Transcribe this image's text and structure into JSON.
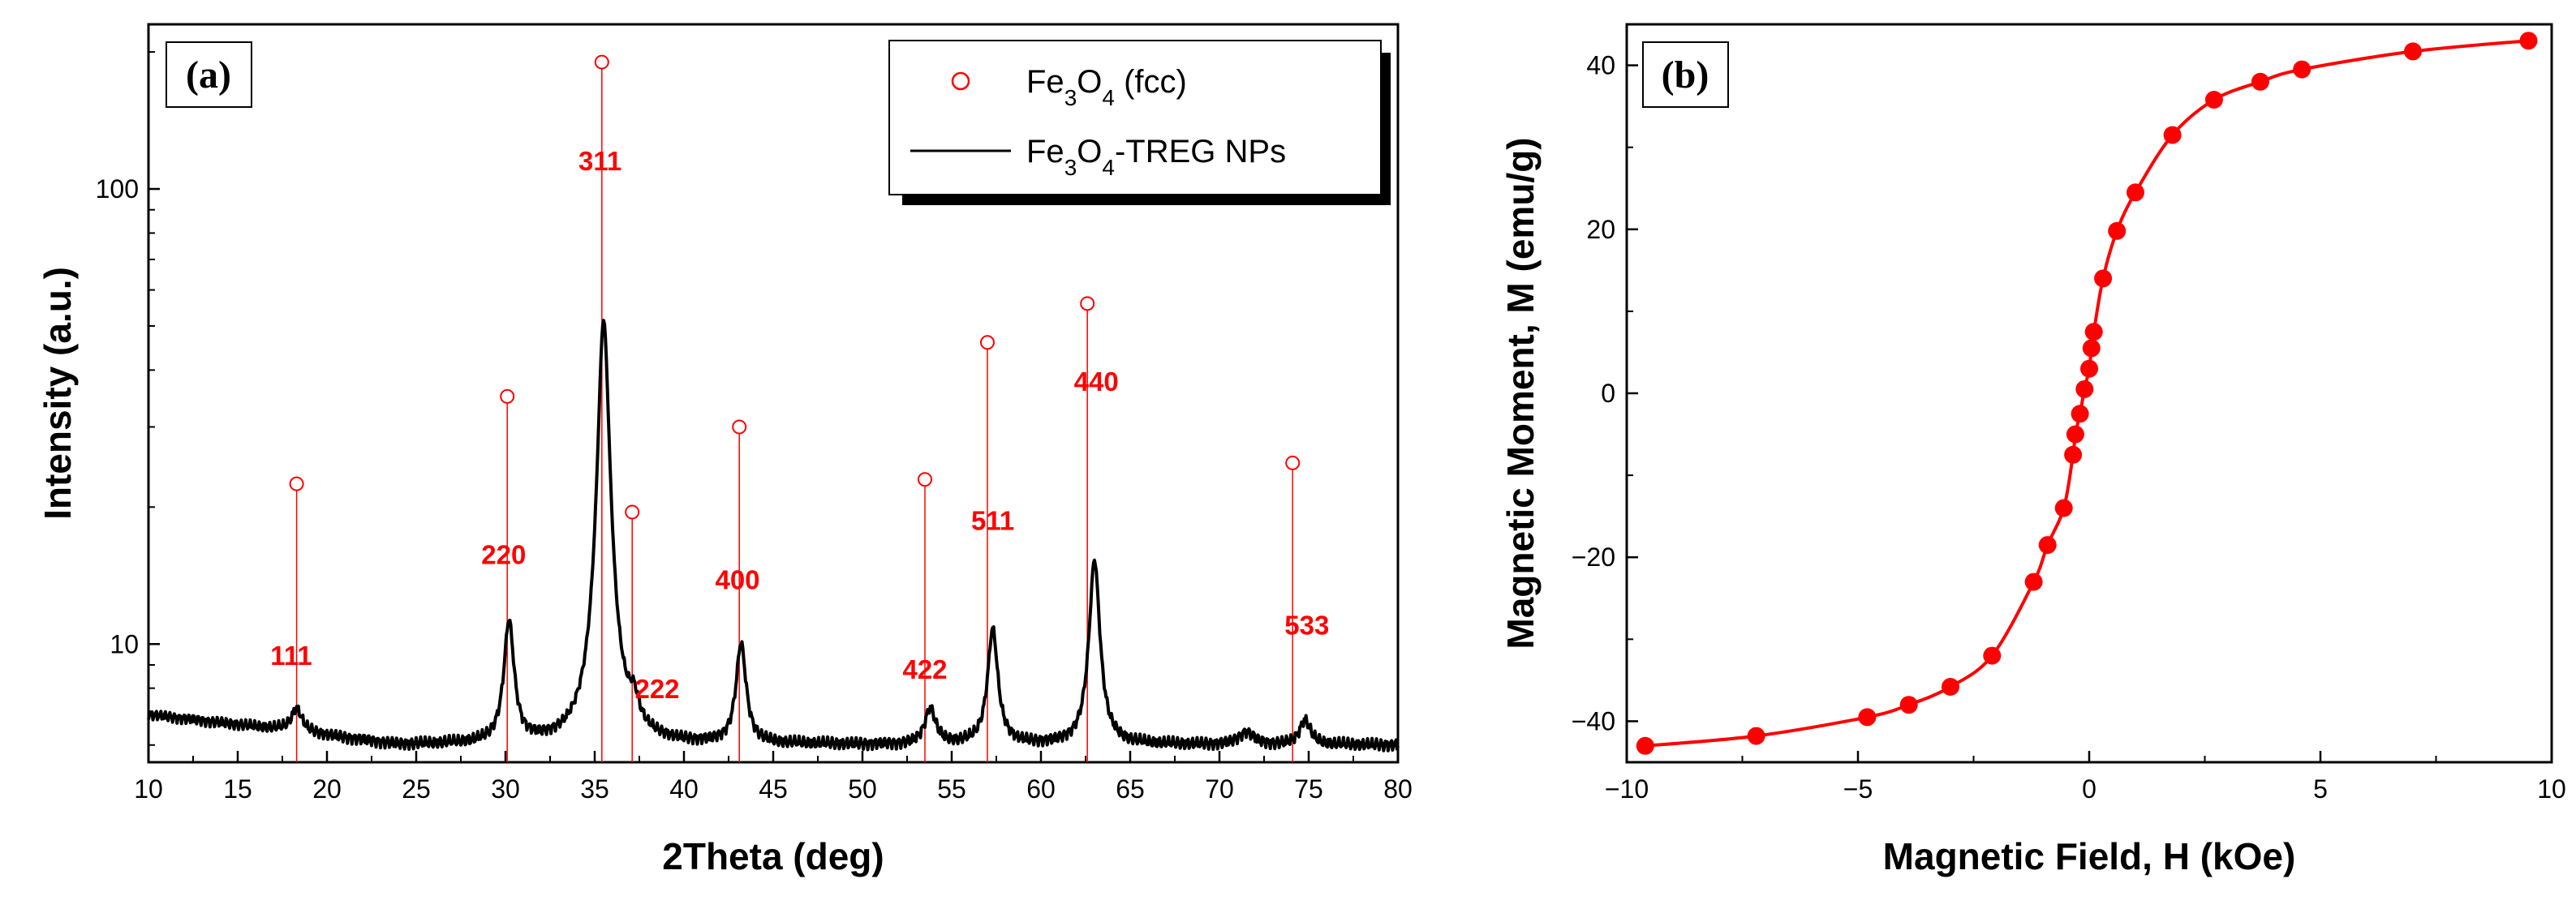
{
  "colors": {
    "reference": "#ff0000",
    "pattern": "#000000",
    "curve": "#ff0000"
  },
  "chart_data": [
    {
      "type": "line",
      "panel_label": "(a)",
      "xlabel": "2Theta (deg)",
      "ylabel": "Intensity (a.u.)",
      "xlim": [
        10,
        80
      ],
      "ylim": [
        5.5,
        230
      ],
      "yscale": "log",
      "xticks": [
        "10",
        "15",
        "20",
        "25",
        "30",
        "35",
        "40",
        "45",
        "50",
        "55",
        "60",
        "65",
        "70",
        "75",
        "80"
      ],
      "yticks": [
        {
          "label": "10",
          "value": 10
        },
        {
          "label": "100",
          "value": 100
        }
      ],
      "legend": {
        "position": "top-right",
        "items": [
          {
            "marker": "open-circle",
            "parts": [
              {
                "t": "Fe",
                "sub": false
              },
              {
                "t": "3",
                "sub": true
              },
              {
                "t": "O",
                "sub": false
              },
              {
                "t": "4",
                "sub": true
              },
              {
                "t": " (fcc)",
                "sub": false
              }
            ]
          },
          {
            "marker": "line",
            "parts": [
              {
                "t": "Fe",
                "sub": false
              },
              {
                "t": "3",
                "sub": true
              },
              {
                "t": "O",
                "sub": false
              },
              {
                "t": "4",
                "sub": true
              },
              {
                "t": "-TREG NPs",
                "sub": false
              }
            ]
          }
        ]
      },
      "series": [
        {
          "name": "Fe3O4 (fcc) reference lines",
          "style": "stick-open-circle",
          "points": [
            {
              "x": 18.3,
              "y": 22.5
            },
            {
              "x": 30.1,
              "y": 35
            },
            {
              "x": 35.4,
              "y": 190
            },
            {
              "x": 37.1,
              "y": 19.5
            },
            {
              "x": 43.1,
              "y": 30
            },
            {
              "x": 53.5,
              "y": 23
            },
            {
              "x": 57.0,
              "y": 46
            },
            {
              "x": 62.6,
              "y": 56
            },
            {
              "x": 74.1,
              "y": 25
            }
          ]
        },
        {
          "name": "Fe3O4-TREG NPs",
          "style": "line",
          "peaks": [
            {
              "x": 18.3,
              "h": 0.8,
              "w": 0.35
            },
            {
              "x": 30.2,
              "h": 5.2,
              "w": 0.3
            },
            {
              "x": 35.5,
              "h": 45.5,
              "w": 0.3
            },
            {
              "x": 37.2,
              "h": 0.9,
              "w": 0.3
            },
            {
              "x": 43.2,
              "h": 4.0,
              "w": 0.3
            },
            {
              "x": 53.8,
              "h": 1.2,
              "w": 0.35
            },
            {
              "x": 57.3,
              "h": 4.8,
              "w": 0.3
            },
            {
              "x": 63.0,
              "h": 9.3,
              "w": 0.3
            },
            {
              "x": 71.5,
              "h": 0.4,
              "w": 0.5
            },
            {
              "x": 74.8,
              "h": 0.8,
              "w": 0.35
            }
          ],
          "baseline": {
            "start": 7.0,
            "end": 6.0,
            "floor_at_x": 24
          }
        }
      ],
      "annotations": [
        {
          "text": "111",
          "x": 18.0,
          "y": 9.0
        },
        {
          "text": "220",
          "x": 29.9,
          "y": 15.0
        },
        {
          "text": "311",
          "x": 35.3,
          "y": 110
        },
        {
          "text": "222",
          "x": 38.5,
          "y": 7.6
        },
        {
          "text": "400",
          "x": 43.0,
          "y": 13.2
        },
        {
          "text": "422",
          "x": 53.5,
          "y": 8.4
        },
        {
          "text": "511",
          "x": 57.3,
          "y": 17.8
        },
        {
          "text": "440",
          "x": 63.1,
          "y": 36
        },
        {
          "text": "533",
          "x": 74.9,
          "y": 10.5
        }
      ]
    },
    {
      "type": "line",
      "panel_label": "(b)",
      "xlabel": "Magnetic Field, H (kOe)",
      "ylabel": "Magnetic Moment, M (emu/g)",
      "xlim": [
        -10,
        10
      ],
      "ylim": [
        -45,
        45
      ],
      "xticks": [
        {
          "label": "−10",
          "value": -10
        },
        {
          "label": "−5",
          "value": -5
        },
        {
          "label": "0",
          "value": 0
        },
        {
          "label": "5",
          "value": 5
        },
        {
          "label": "10",
          "value": 10
        }
      ],
      "yticks": [
        {
          "label": "−40",
          "value": -40
        },
        {
          "label": "−20",
          "value": -20
        },
        {
          "label": "0",
          "value": 0
        },
        {
          "label": "20",
          "value": 20
        },
        {
          "label": "40",
          "value": 40
        }
      ],
      "series": [
        {
          "name": "M-H curve",
          "style": "line-with-markers",
          "points": [
            {
              "x": -9.6,
              "y": -43.0
            },
            {
              "x": -7.2,
              "y": -41.8
            },
            {
              "x": -4.8,
              "y": -39.5
            },
            {
              "x": -3.9,
              "y": -38.0
            },
            {
              "x": -3.0,
              "y": -35.8
            },
            {
              "x": -2.1,
              "y": -32.0
            },
            {
              "x": -1.2,
              "y": -23.0
            },
            {
              "x": -0.9,
              "y": -18.5
            },
            {
              "x": -0.55,
              "y": -14.0
            },
            {
              "x": -0.35,
              "y": -7.5
            },
            {
              "x": -0.3,
              "y": -5.0
            },
            {
              "x": -0.2,
              "y": -2.5
            },
            {
              "x": -0.1,
              "y": 0.5
            },
            {
              "x": 0.0,
              "y": 3.0
            },
            {
              "x": 0.05,
              "y": 5.5
            },
            {
              "x": 0.1,
              "y": 7.5
            },
            {
              "x": 0.3,
              "y": 14.0
            },
            {
              "x": 0.6,
              "y": 19.8
            },
            {
              "x": 1.0,
              "y": 24.5
            },
            {
              "x": 1.8,
              "y": 31.5
            },
            {
              "x": 2.7,
              "y": 35.8
            },
            {
              "x": 3.7,
              "y": 38.0
            },
            {
              "x": 4.6,
              "y": 39.5
            },
            {
              "x": 7.0,
              "y": 41.7
            },
            {
              "x": 9.5,
              "y": 43.0
            }
          ]
        }
      ]
    }
  ]
}
